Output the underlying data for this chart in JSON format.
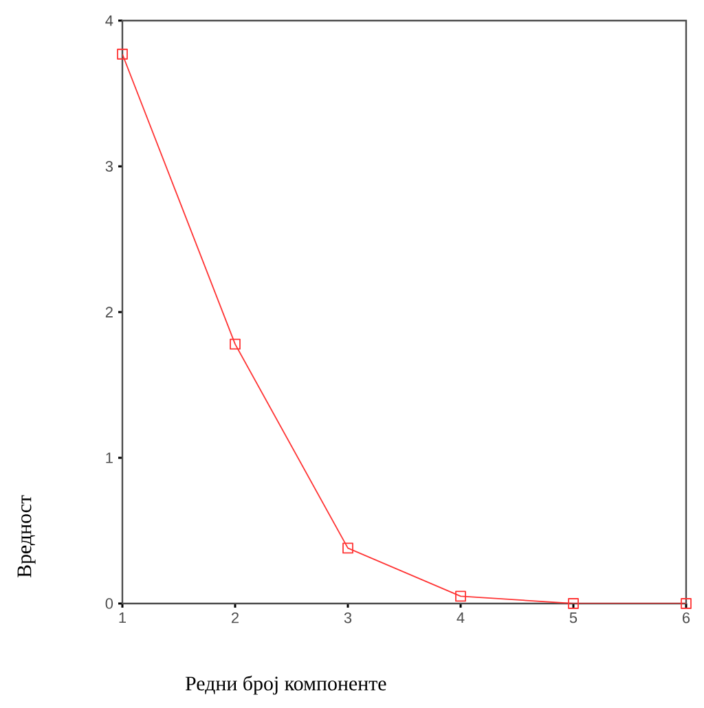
{
  "chart_data": {
    "type": "line",
    "xlabel": "Редни број компоненте",
    "ylabel": "Вредност",
    "x": [
      1,
      2,
      3,
      4,
      5,
      6
    ],
    "series": [
      {
        "color": "#ff3333",
        "values": [
          3.77,
          1.78,
          0.38,
          0.05,
          0,
          0
        ]
      }
    ],
    "xlim": [
      1,
      6
    ],
    "ylim": [
      0,
      4
    ],
    "xticks": [
      1,
      2,
      3,
      4,
      5,
      6
    ],
    "yticks": [
      0,
      1,
      2,
      3,
      4
    ],
    "marker": "square",
    "line_style": "solid"
  }
}
